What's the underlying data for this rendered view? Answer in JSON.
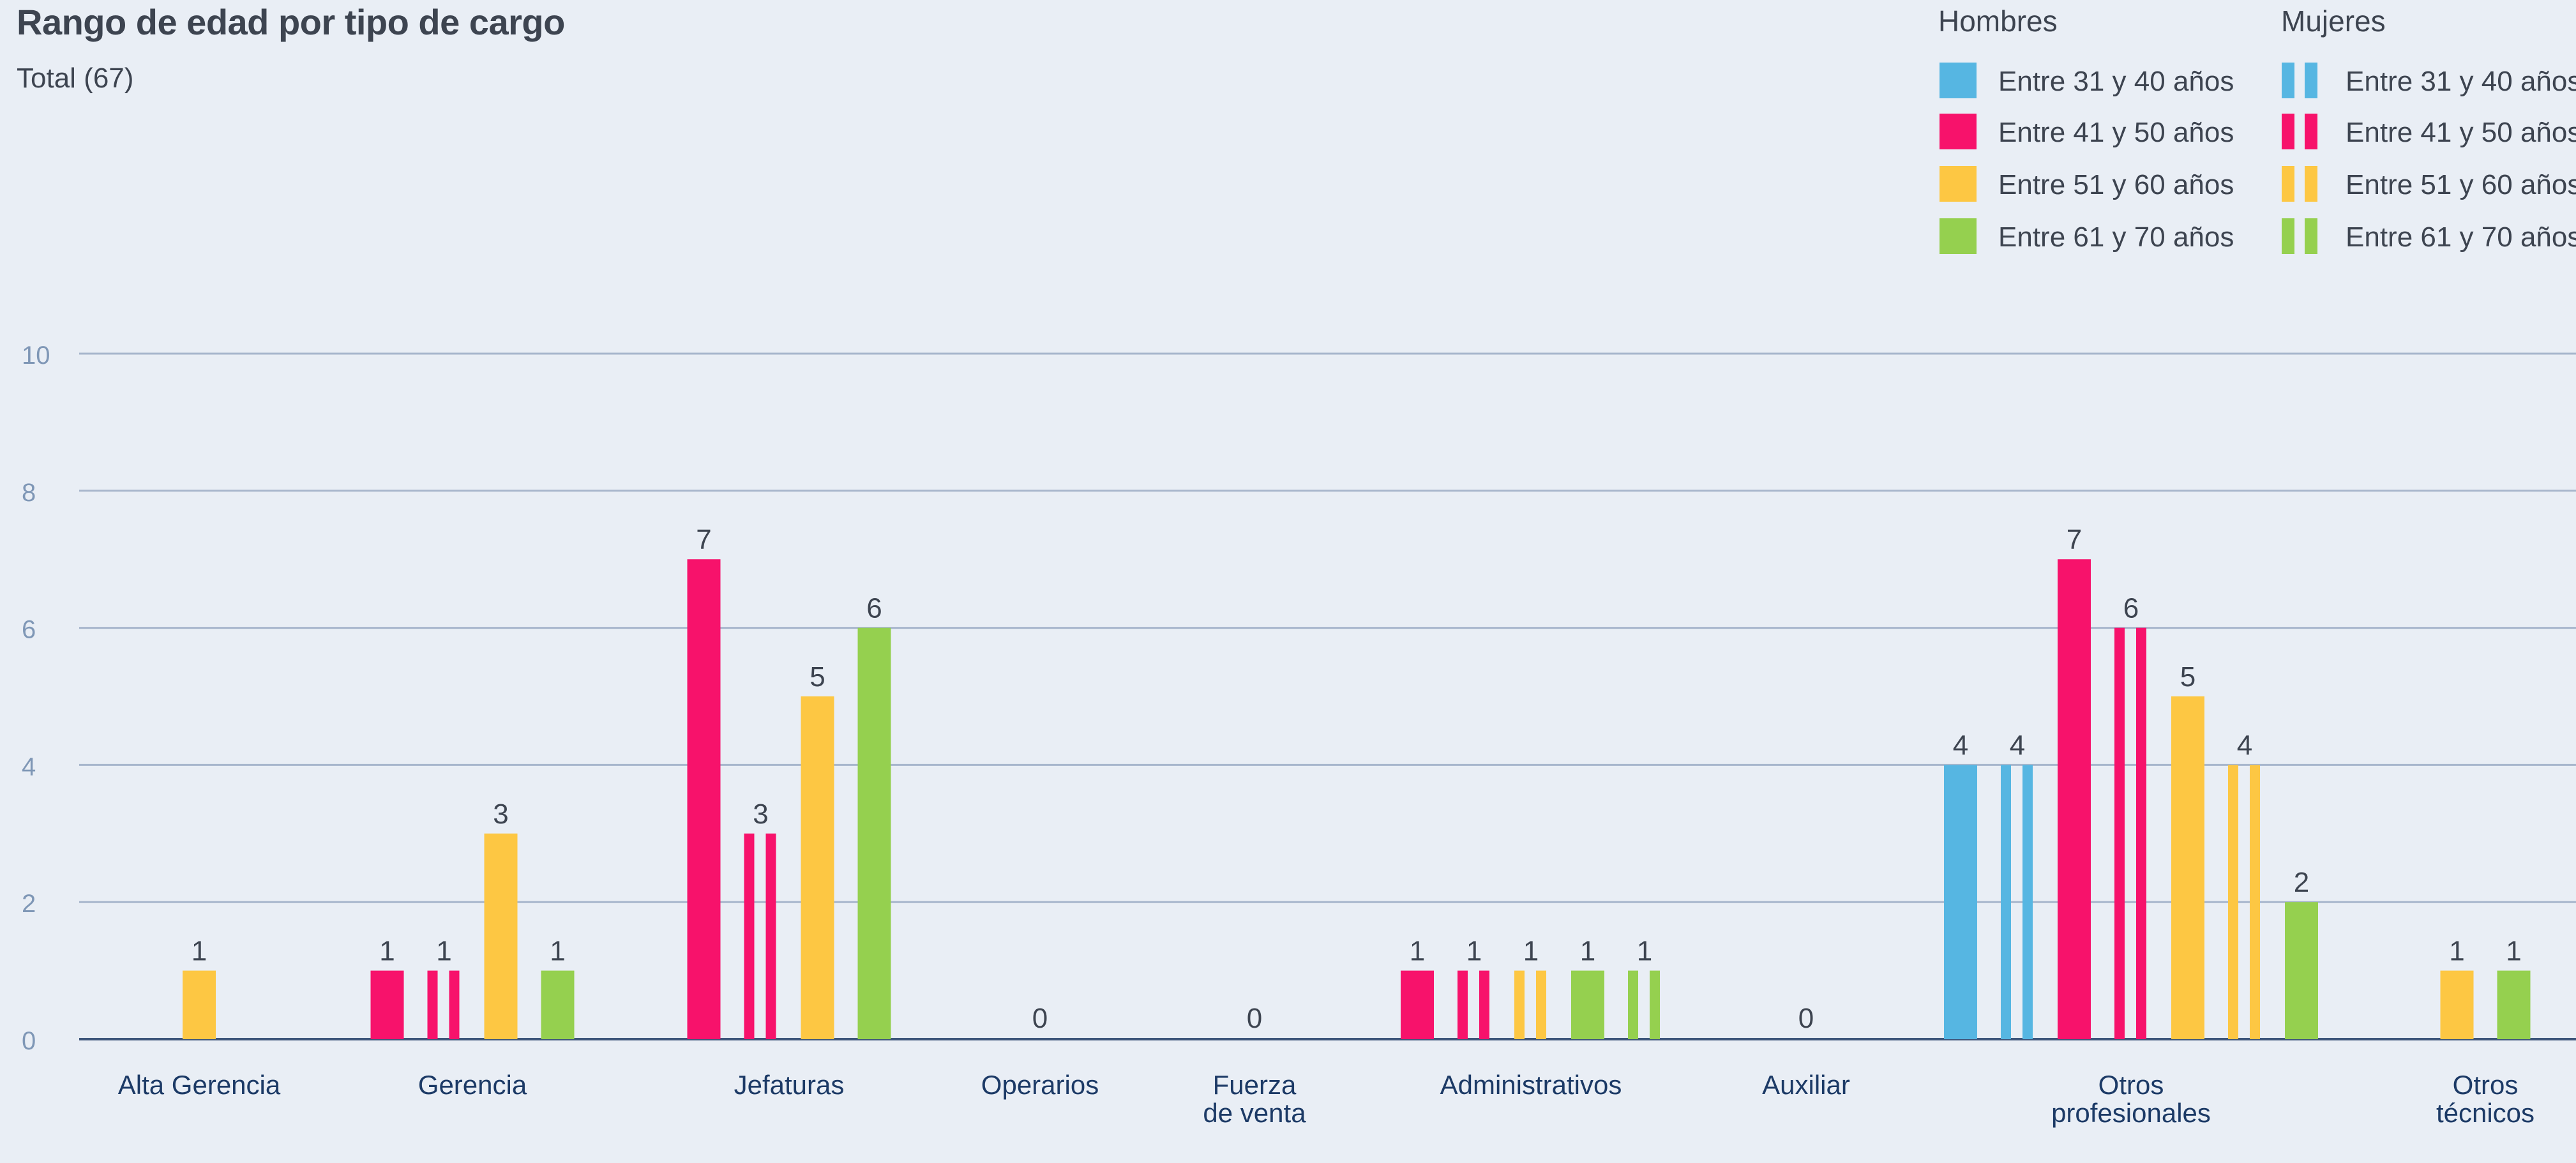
{
  "title": "Rango de edad por tipo de cargo",
  "subtitle": "Total (67)",
  "legend": {
    "men_title": "Hombres",
    "women_title": "Mujeres",
    "items": [
      {
        "label": "Entre 31 y 40 años",
        "color": "#56b6e2"
      },
      {
        "label": "Entre 41 y 50 años",
        "color": "#f7126b"
      },
      {
        "label": "Entre 51 y 60 años",
        "color": "#fdc743"
      },
      {
        "label": "Entre 61 y 70 años",
        "color": "#95d04f"
      }
    ]
  },
  "chart_data": {
    "type": "bar",
    "categories": [
      [
        "Alta Gerencia"
      ],
      [
        "Gerencia"
      ],
      [
        "Jefaturas"
      ],
      [
        "Operarios"
      ],
      [
        "Fuerza",
        "de venta"
      ],
      [
        "Administrativos"
      ],
      [
        "Auxiliar"
      ],
      [
        "Otros",
        "profesionales"
      ],
      [
        "Otros",
        "técnicos"
      ]
    ],
    "yticks": [
      0,
      2,
      4,
      6,
      8,
      10
    ],
    "ylim": [
      0,
      10
    ],
    "grid": true,
    "legend_position": "top-right",
    "bars": [
      [
        {
          "series": "Hombres 51-60",
          "value": 1
        }
      ],
      [
        {
          "series": "Hombres 41-50",
          "value": 1
        },
        {
          "series": "Mujeres 41-50",
          "value": 1
        },
        {
          "series": "Hombres 51-60",
          "value": 3
        },
        {
          "series": "Hombres 61-70",
          "value": 1
        }
      ],
      [
        {
          "series": "Hombres 41-50",
          "value": 7
        },
        {
          "series": "Mujeres 41-50",
          "value": 3
        },
        {
          "series": "Hombres 51-60",
          "value": 5
        },
        {
          "series": "Hombres 61-70",
          "value": 6
        }
      ],
      [],
      [],
      [
        {
          "series": "Hombres 41-50",
          "value": 1
        },
        {
          "series": "Mujeres 41-50",
          "value": 1
        },
        {
          "series": "Mujeres 51-60",
          "value": 1
        },
        {
          "series": "Hombres 61-70",
          "value": 1
        },
        {
          "series": "Mujeres 61-70",
          "value": 1
        }
      ],
      [],
      [
        {
          "series": "Hombres 31-40",
          "value": 4
        },
        {
          "series": "Mujeres 31-40",
          "value": 4
        },
        {
          "series": "Hombres 41-50",
          "value": 7
        },
        {
          "series": "Mujeres 41-50",
          "value": 6
        },
        {
          "series": "Hombres 51-60",
          "value": 5
        },
        {
          "series": "Mujeres 51-60",
          "value": 4
        },
        {
          "series": "Hombres 61-70",
          "value": 2
        }
      ],
      [
        {
          "series": "Hombres 51-60",
          "value": 1
        },
        {
          "series": "Hombres 61-70",
          "value": 1
        }
      ]
    ],
    "zero_labels": [
      null,
      null,
      null,
      "0",
      "0",
      null,
      "0",
      null,
      null
    ]
  }
}
